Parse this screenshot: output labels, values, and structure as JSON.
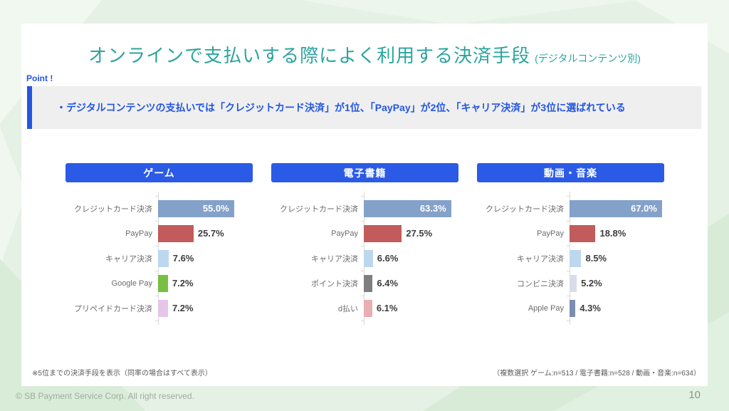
{
  "slide": {
    "title": "オンラインで支払いする際によく利用する決済手段",
    "title_suffix": "(デジタルコンテンツ別)",
    "point_label": "Point !",
    "point_text": "・デジタルコンテンツの支払いでは「クレジットカード決済」が1位、「PayPay」が2位、「キャリア決済」が3位に選ばれている",
    "footnote_left": "※5位までの決済手段を表示（同率の場合はすべて表示）",
    "footnote_right": "（複数選択 ゲーム:n=513 / 電子書籍:n=528 / 動画・音楽:n=634）",
    "copyright": "© SB Payment Service Corp. All right reserved.",
    "page_number": "10"
  },
  "colors": {
    "title_teal": "#2ba49e",
    "accent_blue": "#2456e0",
    "chart_header_blue": "#2b5be6",
    "point_box_bg": "#efefef",
    "axis_gray": "#d9d9d9",
    "value_label_dark": "#3d3d3d",
    "value_label_inside": "#ffffff"
  },
  "chart_data": [
    {
      "type": "bar",
      "orientation": "horizontal",
      "title": "ゲーム",
      "unit": "%",
      "n": 513,
      "xlim": [
        0,
        70
      ],
      "grid": false,
      "categories": [
        "クレジットカード決済",
        "PayPay",
        "キャリア決済",
        "Google Pay",
        "プリペイドカード決済"
      ],
      "values": [
        55.0,
        25.7,
        7.6,
        7.2,
        7.2
      ],
      "value_labels": [
        "55.0%",
        "25.7%",
        "7.6%",
        "7.2%",
        "7.2%"
      ],
      "bar_colors": [
        "#84a1c9",
        "#c25b5b",
        "#bdd7ee",
        "#77c043",
        "#e5c6e9"
      ],
      "value_label_inside": [
        true,
        false,
        false,
        false,
        false
      ]
    },
    {
      "type": "bar",
      "orientation": "horizontal",
      "title": "電子書籍",
      "unit": "%",
      "n": 528,
      "xlim": [
        0,
        70
      ],
      "grid": false,
      "categories": [
        "クレジットカード決済",
        "PayPay",
        "キャリア決済",
        "ポイント決済",
        "d払い"
      ],
      "values": [
        63.3,
        27.5,
        6.6,
        6.4,
        6.1
      ],
      "value_labels": [
        "63.3%",
        "27.5%",
        "6.6%",
        "6.4%",
        "6.1%"
      ],
      "bar_colors": [
        "#84a1c9",
        "#c25b5b",
        "#bdd7ee",
        "#7f7f7f",
        "#e9aeb3"
      ],
      "value_label_inside": [
        true,
        false,
        false,
        false,
        false
      ]
    },
    {
      "type": "bar",
      "orientation": "horizontal",
      "title": "動画・音楽",
      "unit": "%",
      "n": 634,
      "xlim": [
        0,
        70
      ],
      "grid": false,
      "categories": [
        "クレジットカード決済",
        "PayPay",
        "キャリア決済",
        "コンビニ決済",
        "Apple Pay"
      ],
      "values": [
        67.0,
        18.8,
        8.5,
        5.2,
        4.3
      ],
      "value_labels": [
        "67.0%",
        "18.8%",
        "8.5%",
        "5.2%",
        "4.3%"
      ],
      "bar_colors": [
        "#84a1c9",
        "#c25b5b",
        "#bdd7ee",
        "#d8dde9",
        "#7b8eae"
      ],
      "value_label_inside": [
        true,
        false,
        false,
        false,
        false
      ]
    }
  ]
}
